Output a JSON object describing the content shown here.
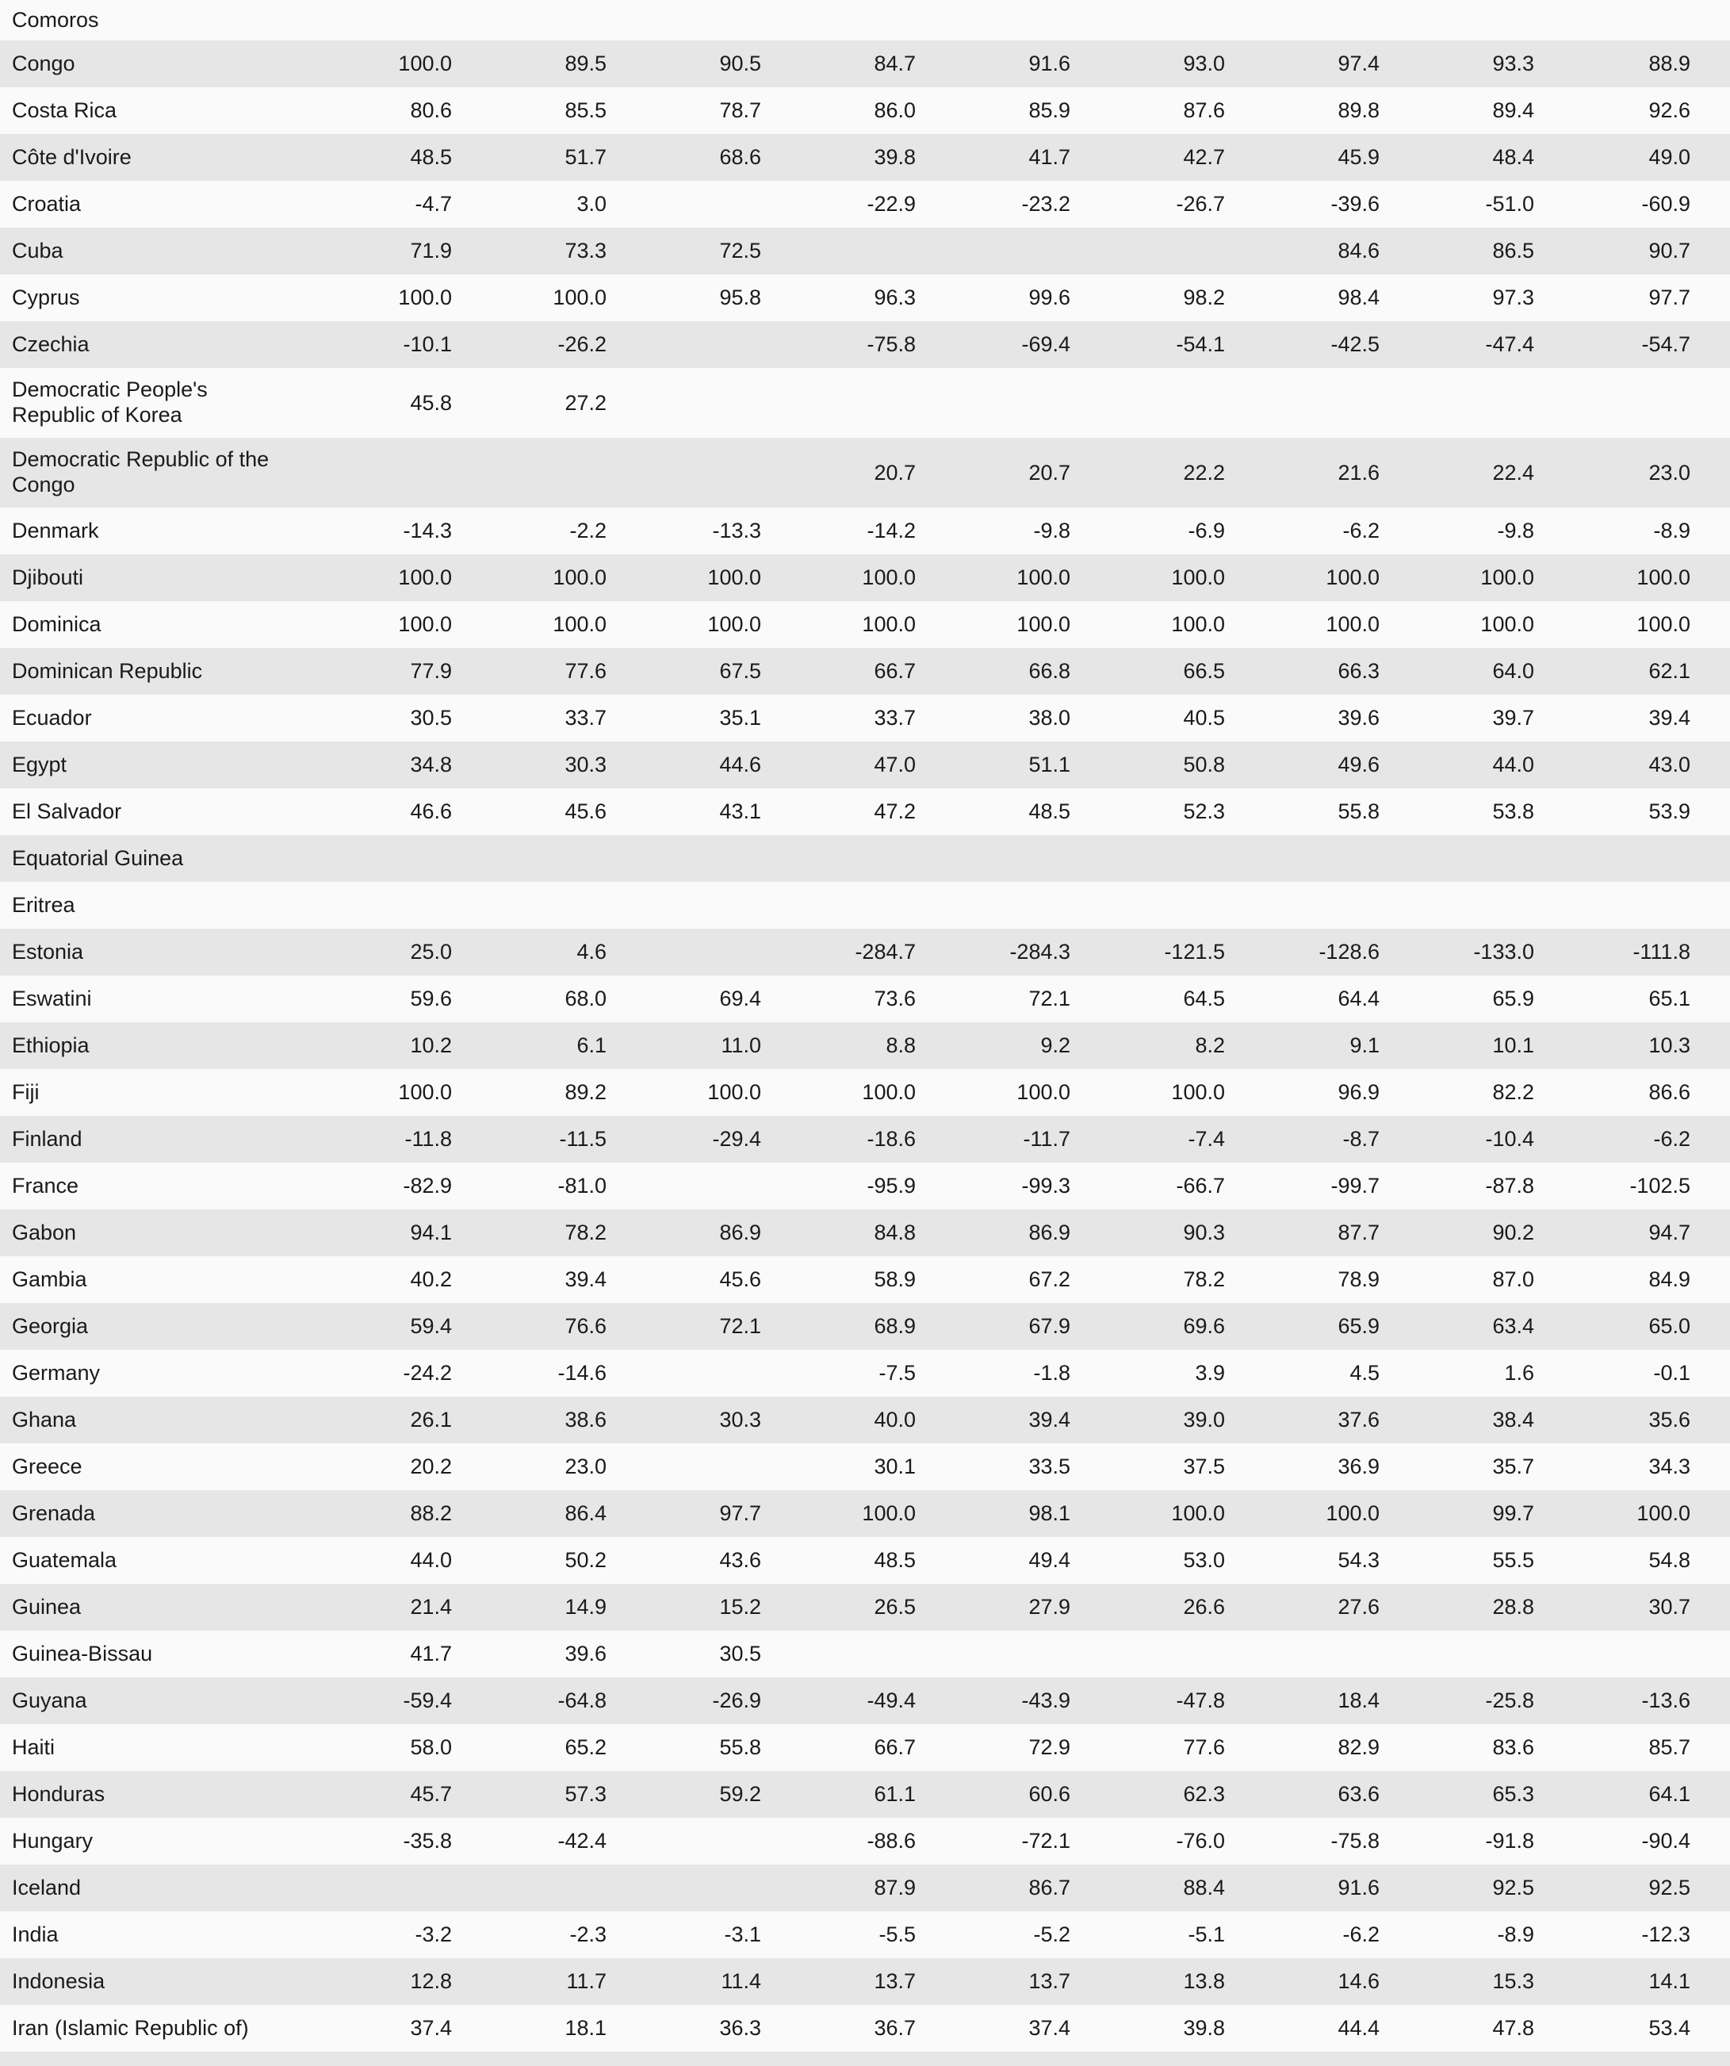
{
  "colors": {
    "stripe_dark": "#e6e6e6",
    "stripe_light": "#fafafa",
    "text": "#1a1a1a"
  },
  "table": {
    "num_value_columns": 9,
    "rows": [
      {
        "country": "Comoros",
        "values": [
          "",
          "",
          "",
          "",
          "",
          "",
          "",
          "",
          ""
        ]
      },
      {
        "country": "Congo",
        "values": [
          "100.0",
          "89.5",
          "90.5",
          "84.7",
          "91.6",
          "93.0",
          "97.4",
          "93.3",
          "88.9"
        ]
      },
      {
        "country": "Costa Rica",
        "values": [
          "80.6",
          "85.5",
          "78.7",
          "86.0",
          "85.9",
          "87.6",
          "89.8",
          "89.4",
          "92.6"
        ]
      },
      {
        "country": "Côte d'Ivoire",
        "values": [
          "48.5",
          "51.7",
          "68.6",
          "39.8",
          "41.7",
          "42.7",
          "45.9",
          "48.4",
          "49.0"
        ]
      },
      {
        "country": "Croatia",
        "values": [
          "-4.7",
          "3.0",
          "",
          "-22.9",
          "-23.2",
          "-26.7",
          "-39.6",
          "-51.0",
          "-60.9"
        ]
      },
      {
        "country": "Cuba",
        "values": [
          "71.9",
          "73.3",
          "72.5",
          "",
          "",
          "",
          "84.6",
          "86.5",
          "90.7"
        ]
      },
      {
        "country": "Cyprus",
        "values": [
          "100.0",
          "100.0",
          "95.8",
          "96.3",
          "99.6",
          "98.2",
          "98.4",
          "97.3",
          "97.7"
        ]
      },
      {
        "country": "Czechia",
        "values": [
          "-10.1",
          "-26.2",
          "",
          "-75.8",
          "-69.4",
          "-54.1",
          "-42.5",
          "-47.4",
          "-54.7"
        ]
      },
      {
        "country": "Democratic People's\nRepublic of Korea",
        "values": [
          "45.8",
          "27.2",
          "",
          "",
          "",
          "",
          "",
          "",
          ""
        ]
      },
      {
        "country": "Democratic Republic of the\nCongo",
        "values": [
          "",
          "",
          "",
          "20.7",
          "20.7",
          "22.2",
          "21.6",
          "22.4",
          "23.0"
        ]
      },
      {
        "country": "Denmark",
        "values": [
          "-14.3",
          "-2.2",
          "-13.3",
          "-14.2",
          "-9.8",
          "-6.9",
          "-6.2",
          "-9.8",
          "-8.9"
        ]
      },
      {
        "country": "Djibouti",
        "values": [
          "100.0",
          "100.0",
          "100.0",
          "100.0",
          "100.0",
          "100.0",
          "100.0",
          "100.0",
          "100.0"
        ]
      },
      {
        "country": "Dominica",
        "values": [
          "100.0",
          "100.0",
          "100.0",
          "100.0",
          "100.0",
          "100.0",
          "100.0",
          "100.0",
          "100.0"
        ]
      },
      {
        "country": "Dominican Republic",
        "values": [
          "77.9",
          "77.6",
          "67.5",
          "66.7",
          "66.8",
          "66.5",
          "66.3",
          "64.0",
          "62.1"
        ]
      },
      {
        "country": "Ecuador",
        "values": [
          "30.5",
          "33.7",
          "35.1",
          "33.7",
          "38.0",
          "40.5",
          "39.6",
          "39.7",
          "39.4"
        ]
      },
      {
        "country": "Egypt",
        "values": [
          "34.8",
          "30.3",
          "44.6",
          "47.0",
          "51.1",
          "50.8",
          "49.6",
          "44.0",
          "43.0"
        ]
      },
      {
        "country": "El Salvador",
        "values": [
          "46.6",
          "45.6",
          "43.1",
          "47.2",
          "48.5",
          "52.3",
          "55.8",
          "53.8",
          "53.9"
        ]
      },
      {
        "country": "Equatorial Guinea",
        "values": [
          "",
          "",
          "",
          "",
          "",
          "",
          "",
          "",
          ""
        ]
      },
      {
        "country": "Eritrea",
        "values": [
          "",
          "",
          "",
          "",
          "",
          "",
          "",
          "",
          ""
        ]
      },
      {
        "country": "Estonia",
        "values": [
          "25.0",
          "4.6",
          "",
          "-284.7",
          "-284.3",
          "-121.5",
          "-128.6",
          "-133.0",
          "-111.8"
        ]
      },
      {
        "country": "Eswatini",
        "values": [
          "59.6",
          "68.0",
          "69.4",
          "73.6",
          "72.1",
          "64.5",
          "64.4",
          "65.9",
          "65.1"
        ]
      },
      {
        "country": "Ethiopia",
        "values": [
          "10.2",
          "6.1",
          "11.0",
          "8.8",
          "9.2",
          "8.2",
          "9.1",
          "10.1",
          "10.3"
        ]
      },
      {
        "country": "Fiji",
        "values": [
          "100.0",
          "89.2",
          "100.0",
          "100.0",
          "100.0",
          "100.0",
          "96.9",
          "82.2",
          "86.6"
        ]
      },
      {
        "country": "Finland",
        "values": [
          "-11.8",
          "-11.5",
          "-29.4",
          "-18.6",
          "-11.7",
          "-7.4",
          "-8.7",
          "-10.4",
          "-6.2"
        ]
      },
      {
        "country": "France",
        "values": [
          "-82.9",
          "-81.0",
          "",
          "-95.9",
          "-99.3",
          "-66.7",
          "-99.7",
          "-87.8",
          "-102.5"
        ]
      },
      {
        "country": "Gabon",
        "values": [
          "94.1",
          "78.2",
          "86.9",
          "84.8",
          "86.9",
          "90.3",
          "87.7",
          "90.2",
          "94.7"
        ]
      },
      {
        "country": "Gambia",
        "values": [
          "40.2",
          "39.4",
          "45.6",
          "58.9",
          "67.2",
          "78.2",
          "78.9",
          "87.0",
          "84.9"
        ]
      },
      {
        "country": "Georgia",
        "values": [
          "59.4",
          "76.6",
          "72.1",
          "68.9",
          "67.9",
          "69.6",
          "65.9",
          "63.4",
          "65.0"
        ]
      },
      {
        "country": "Germany",
        "values": [
          "-24.2",
          "-14.6",
          "",
          "-7.5",
          "-1.8",
          "3.9",
          "4.5",
          "1.6",
          "-0.1"
        ]
      },
      {
        "country": "Ghana",
        "values": [
          "26.1",
          "38.6",
          "30.3",
          "40.0",
          "39.4",
          "39.0",
          "37.6",
          "38.4",
          "35.6"
        ]
      },
      {
        "country": "Greece",
        "values": [
          "20.2",
          "23.0",
          "",
          "30.1",
          "33.5",
          "37.5",
          "36.9",
          "35.7",
          "34.3"
        ]
      },
      {
        "country": "Grenada",
        "values": [
          "88.2",
          "86.4",
          "97.7",
          "100.0",
          "98.1",
          "100.0",
          "100.0",
          "99.7",
          "100.0"
        ]
      },
      {
        "country": "Guatemala",
        "values": [
          "44.0",
          "50.2",
          "43.6",
          "48.5",
          "49.4",
          "53.0",
          "54.3",
          "55.5",
          "54.8"
        ]
      },
      {
        "country": "Guinea",
        "values": [
          "21.4",
          "14.9",
          "15.2",
          "26.5",
          "27.9",
          "26.6",
          "27.6",
          "28.8",
          "30.7"
        ]
      },
      {
        "country": "Guinea-Bissau",
        "values": [
          "41.7",
          "39.6",
          "30.5",
          "",
          "",
          "",
          "",
          "",
          ""
        ]
      },
      {
        "country": "Guyana",
        "values": [
          "-59.4",
          "-64.8",
          "-26.9",
          "-49.4",
          "-43.9",
          "-47.8",
          "18.4",
          "-25.8",
          "-13.6"
        ]
      },
      {
        "country": "Haiti",
        "values": [
          "58.0",
          "65.2",
          "55.8",
          "66.7",
          "72.9",
          "77.6",
          "82.9",
          "83.6",
          "85.7"
        ]
      },
      {
        "country": "Honduras",
        "values": [
          "45.7",
          "57.3",
          "59.2",
          "61.1",
          "60.6",
          "62.3",
          "63.6",
          "65.3",
          "64.1"
        ]
      },
      {
        "country": "Hungary",
        "values": [
          "-35.8",
          "-42.4",
          "",
          "-88.6",
          "-72.1",
          "-76.0",
          "-75.8",
          "-91.8",
          "-90.4"
        ]
      },
      {
        "country": "Iceland",
        "values": [
          "",
          "",
          "",
          "87.9",
          "86.7",
          "88.4",
          "91.6",
          "92.5",
          "92.5"
        ]
      },
      {
        "country": "India",
        "values": [
          "-3.2",
          "-2.3",
          "-3.1",
          "-5.5",
          "-5.2",
          "-5.1",
          "-6.2",
          "-8.9",
          "-12.3"
        ]
      },
      {
        "country": "Indonesia",
        "values": [
          "12.8",
          "11.7",
          "11.4",
          "13.7",
          "13.7",
          "13.8",
          "14.6",
          "15.3",
          "14.1"
        ]
      },
      {
        "country": "Iran (Islamic Republic of)",
        "values": [
          "37.4",
          "18.1",
          "36.3",
          "36.7",
          "37.4",
          "39.8",
          "44.4",
          "47.8",
          "53.4"
        ]
      }
    ]
  }
}
